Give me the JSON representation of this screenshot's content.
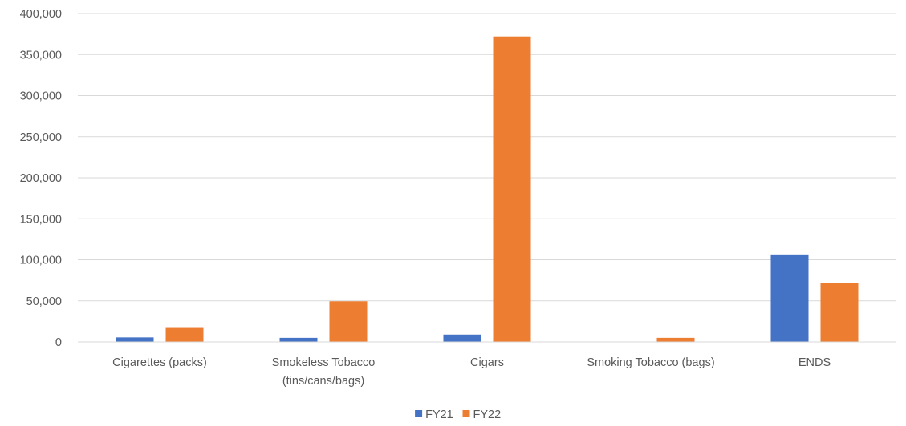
{
  "chart_data": {
    "type": "bar",
    "categories": [
      [
        "Cigarettes (packs)"
      ],
      [
        "Smokeless Tobacco",
        "(tins/cans/bags)"
      ],
      [
        "Cigars"
      ],
      [
        "Smoking Tobacco (bags)"
      ],
      [
        "ENDS"
      ]
    ],
    "series": [
      {
        "name": "FY21",
        "color": "#4472c4",
        "values": [
          5500,
          5000,
          9000,
          0,
          106500
        ]
      },
      {
        "name": "FY22",
        "color": "#ed7d31",
        "values": [
          18000,
          49500,
          372000,
          5000,
          71500
        ]
      }
    ],
    "ylim": [
      0,
      400000
    ],
    "yticks": [
      {
        "value": 0,
        "label": "0"
      },
      {
        "value": 50000,
        "label": "50,000"
      },
      {
        "value": 100000,
        "label": "100,000"
      },
      {
        "value": 150000,
        "label": "150,000"
      },
      {
        "value": 200000,
        "label": "200,000"
      },
      {
        "value": 250000,
        "label": "250,000"
      },
      {
        "value": 300000,
        "label": "300,000"
      },
      {
        "value": 350000,
        "label": "350,000"
      },
      {
        "value": 400000,
        "label": "400,000"
      }
    ],
    "grid": true,
    "legend_position": "bottom"
  }
}
